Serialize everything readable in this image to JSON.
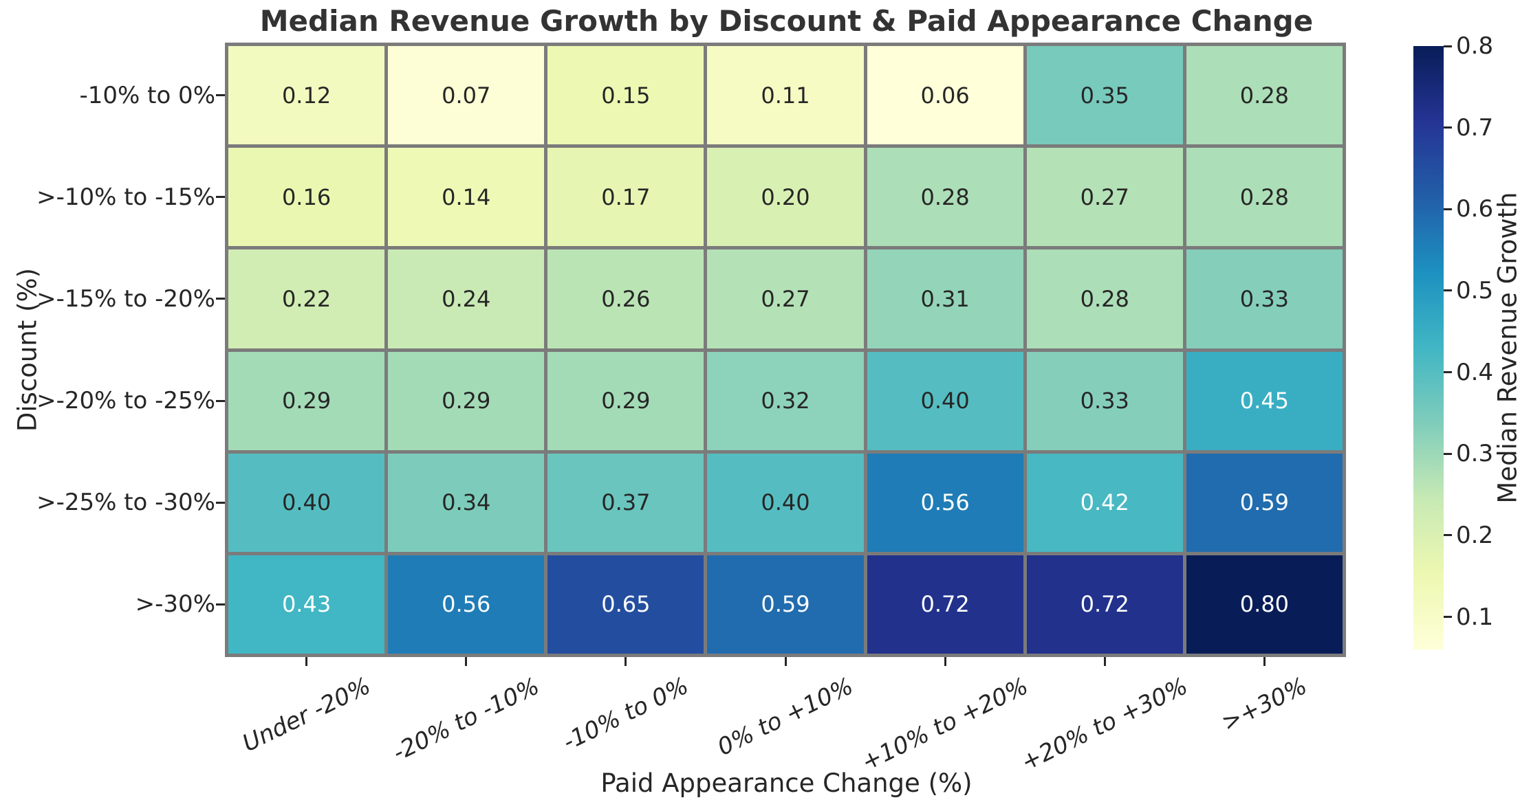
{
  "chart_data": {
    "type": "heatmap",
    "title": "Median Revenue Growth by Discount & Paid Appearance Change",
    "xlabel": "Paid Appearance Change (%)",
    "ylabel": "Discount (%)",
    "x_categories": [
      "Under -20%",
      "-20% to -10%",
      "-10% to 0%",
      "0% to +10%",
      "+10% to +20%",
      "+20% to +30%",
      ">+30%"
    ],
    "y_categories": [
      "-10% to 0%",
      ">-10% to -15%",
      ">-15% to -20%",
      ">-20% to -25%",
      ">-25% to -30%",
      ">-30%"
    ],
    "values": [
      [
        0.12,
        0.07,
        0.15,
        0.11,
        0.06,
        0.35,
        0.28
      ],
      [
        0.16,
        0.14,
        0.17,
        0.2,
        0.28,
        0.27,
        0.28
      ],
      [
        0.22,
        0.24,
        0.26,
        0.27,
        0.31,
        0.28,
        0.33
      ],
      [
        0.29,
        0.29,
        0.29,
        0.32,
        0.4,
        0.33,
        0.45
      ],
      [
        0.4,
        0.34,
        0.37,
        0.4,
        0.56,
        0.42,
        0.59
      ],
      [
        0.43,
        0.56,
        0.65,
        0.59,
        0.72,
        0.72,
        0.8
      ]
    ],
    "annotation_decimals": 2,
    "grid_on": true,
    "colorbar": {
      "label": "Median Revenue Growth",
      "ticks": [
        0.1,
        0.2,
        0.3,
        0.4,
        0.5,
        0.6,
        0.7,
        0.8
      ],
      "tick_decimals": 1,
      "vmin": 0.06,
      "vmax": 0.8,
      "position": "right"
    },
    "colormap": {
      "name": "YlGnBu",
      "stops": [
        [
          0.0,
          "#ffffd9"
        ],
        [
          0.125,
          "#edf8b1"
        ],
        [
          0.25,
          "#c7e9b4"
        ],
        [
          0.375,
          "#7fcdbb"
        ],
        [
          0.5,
          "#41b6c4"
        ],
        [
          0.625,
          "#1d91c0"
        ],
        [
          0.75,
          "#225ea8"
        ],
        [
          0.875,
          "#253494"
        ],
        [
          1.0,
          "#081d58"
        ]
      ]
    },
    "colors": {
      "title_text": "#333333",
      "axis_text": "#262626",
      "annotation_dark": "#262626",
      "annotation_light": "#ffffff",
      "grid_line": "#7b7b7b",
      "background": "#ffffff"
    }
  }
}
